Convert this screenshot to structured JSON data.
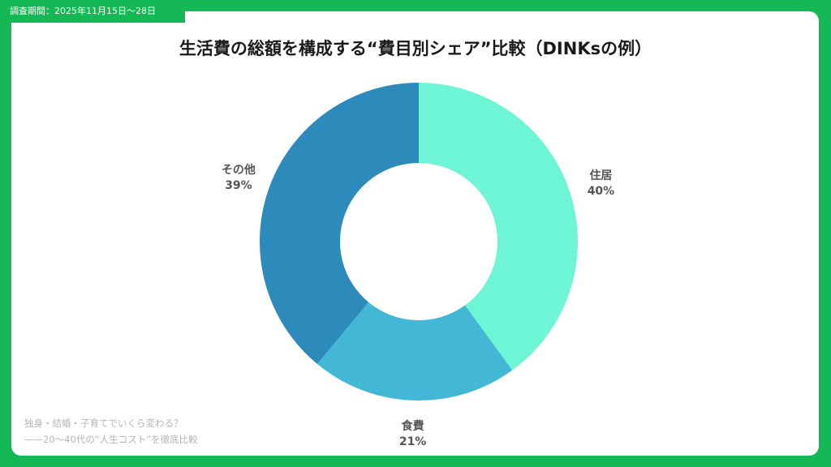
{
  "survey_period": "調査期間：2025年11月15日〜28日",
  "colors": {
    "frame": "#14b854",
    "slice_housing": "#6ef5d5",
    "slice_food": "#43b8d6",
    "slice_other": "#2d8bbb"
  },
  "footnote": {
    "line1": "独身・結婚・子育てでいくら変わる？",
    "line2": "——20〜40代の“人生コスト”を徹底比較"
  },
  "chart_data": {
    "type": "pie",
    "title": "生活費の総額を構成する“費目別シェア”比較（DINKsの例）",
    "categories": [
      "住居",
      "食費",
      "その他"
    ],
    "values": [
      40,
      21,
      39
    ],
    "unit": "%",
    "data_labels": [
      "40%",
      "21%",
      "39%"
    ],
    "donut": true,
    "start_angle": "12 o'clock",
    "direction": "clockwise",
    "legend": "none"
  }
}
